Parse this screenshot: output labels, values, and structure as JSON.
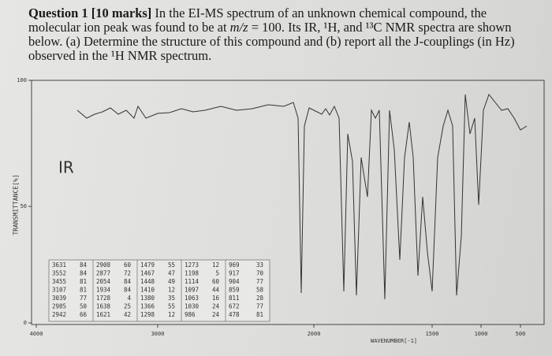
{
  "question": {
    "label": "Question 1 [10 marks]",
    "text_before": " In the EI-MS spectrum of an unknown chemical compound, the molecular ion peak was found to be at ",
    "mz": "m/z",
    "text_after": " = 100. Its IR, ¹H, and ¹³C NMR spectra are shown below. (a) Determine the structure of this compound and (b) report all the J-couplings (in Hz) observed in the ¹H NMR spectrum."
  },
  "spectrum": {
    "title": "IR",
    "y_label": "TRANSMITTANCE[%]",
    "x_label": "WAVENUMBER[-1]",
    "y_ticks": [
      "100",
      "50",
      "0"
    ],
    "x_ticks": [
      "4000",
      "3000",
      "2000",
      "1500",
      "1000",
      "500"
    ],
    "peak_table": {
      "columns": [
        {
          "rows": [
            [
              "3631",
              "84"
            ],
            [
              "3552",
              "84"
            ],
            [
              "3455",
              "81"
            ],
            [
              "3107",
              "81"
            ],
            [
              "3039",
              "77"
            ],
            [
              "2985",
              "50"
            ],
            [
              "2942",
              "66"
            ]
          ]
        },
        {
          "rows": [
            [
              "2908",
              "60"
            ],
            [
              "2877",
              "72"
            ],
            [
              "2054",
              "84"
            ],
            [
              "1934",
              "84"
            ],
            [
              "1728",
              "4"
            ],
            [
              "1638",
              "25"
            ],
            [
              "1621",
              "42"
            ]
          ]
        },
        {
          "rows": [
            [
              "1479",
              "55"
            ],
            [
              "1467",
              "47"
            ],
            [
              "1448",
              "49"
            ],
            [
              "1410",
              "12"
            ],
            [
              "1380",
              "35"
            ],
            [
              "1366",
              "55"
            ],
            [
              "1298",
              "12"
            ]
          ]
        },
        {
          "rows": [
            [
              "1273",
              "12"
            ],
            [
              "1198",
              "5"
            ],
            [
              "1114",
              "60"
            ],
            [
              "1097",
              "44"
            ],
            [
              "1063",
              "16"
            ],
            [
              "1030",
              "24"
            ],
            [
              "986",
              "24"
            ]
          ]
        },
        {
          "rows": [
            [
              "969",
              "33"
            ],
            [
              "917",
              "70"
            ],
            [
              "904",
              "77"
            ],
            [
              "859",
              "58"
            ],
            [
              "811",
              "28"
            ],
            [
              "672",
              "77"
            ],
            [
              "478",
              "81"
            ]
          ]
        }
      ]
    }
  }
}
